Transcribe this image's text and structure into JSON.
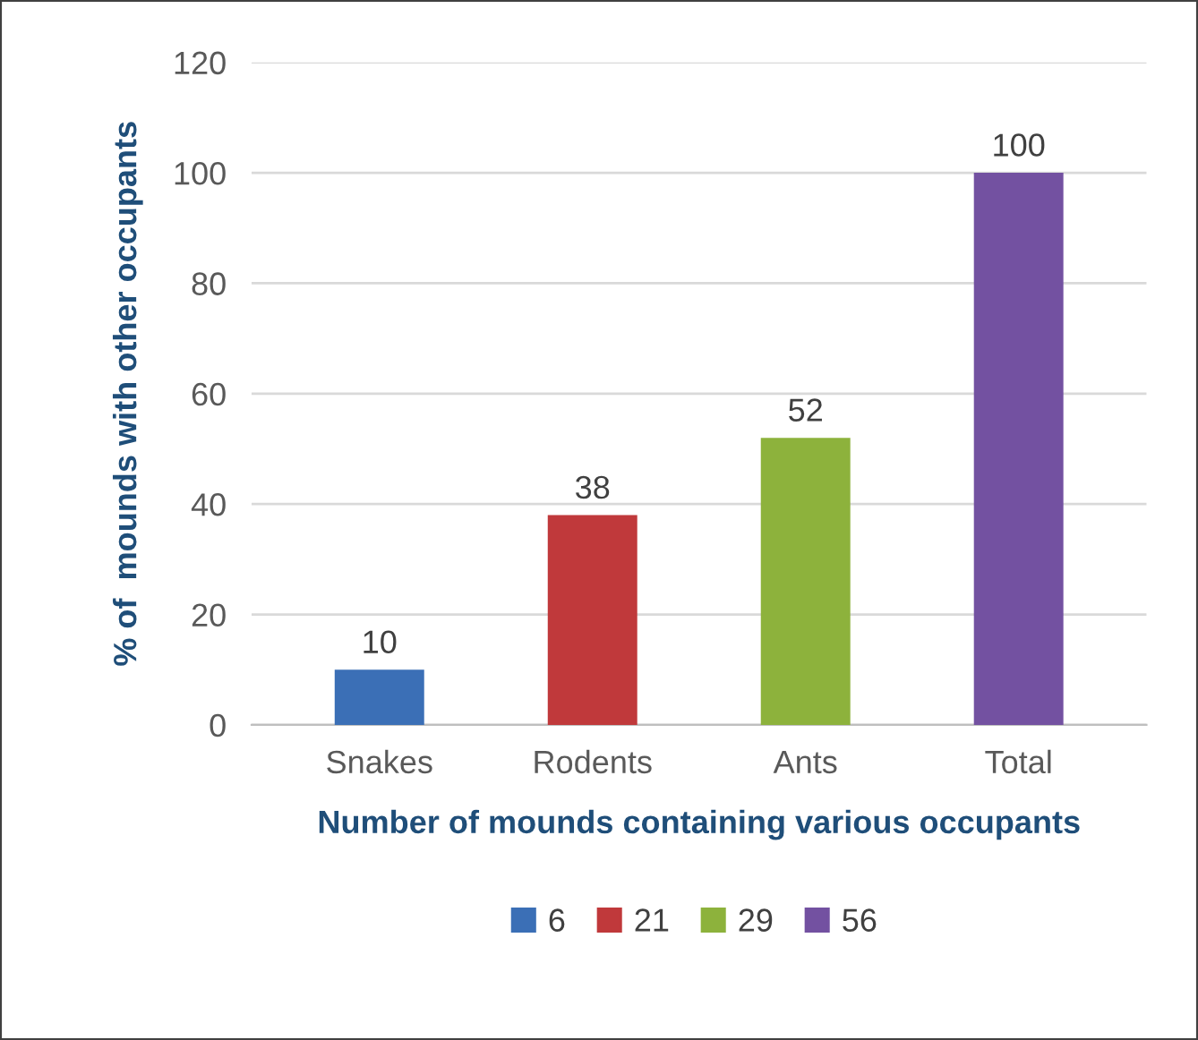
{
  "chart_data": {
    "type": "bar",
    "xlabel": "Number of mounds containing various occupants",
    "ylabel": "% of  mounds with other occupants",
    "categories": [
      "Snakes",
      "Rodents",
      "Ants",
      "Total"
    ],
    "series": [
      {
        "name": "6",
        "color": "#3b6fb6",
        "values": [
          10,
          null,
          null,
          null
        ]
      },
      {
        "name": "21",
        "color": "#c0393b",
        "values": [
          null,
          38,
          null,
          null
        ]
      },
      {
        "name": "29",
        "color": "#8db23c",
        "values": [
          null,
          null,
          52,
          null
        ]
      },
      {
        "name": "56",
        "color": "#7351a1",
        "values": [
          null,
          null,
          null,
          100
        ]
      }
    ],
    "ylim": [
      0,
      120
    ],
    "yticks": [
      0,
      20,
      40,
      60,
      80,
      100,
      120
    ],
    "grid": "y",
    "legend": "bottom",
    "data_labels": true
  }
}
